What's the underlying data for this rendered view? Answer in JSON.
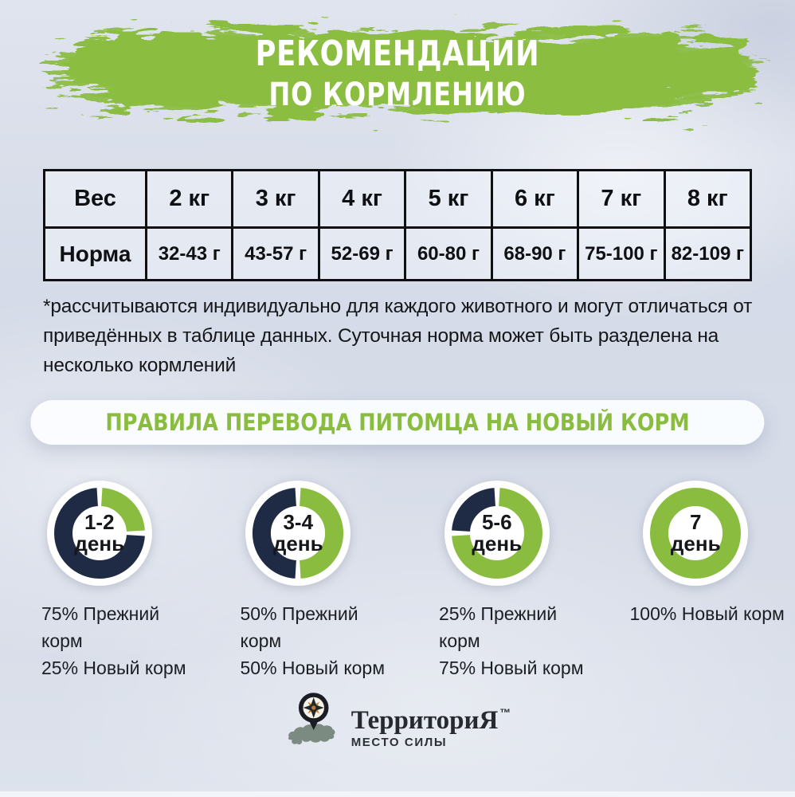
{
  "colors": {
    "accent_green": "#8abd3f",
    "navy": "#1f2a44",
    "page_background": "#d7dce8",
    "banner_text": "#ffffff",
    "pill_background": "#fbfdff",
    "text_dark": "#15181c",
    "map_silhouette": "#7c8b81",
    "compass_orange": "#c07a2b",
    "compass_dark": "#1a1e24"
  },
  "banner": {
    "line1": "РЕКОМЕНДАЦИИ",
    "line2": "ПО КОРМЛЕНИЮ"
  },
  "footnote": "*рассчитываются индивидуально для каждого животного и могут отличаться от приведённых в таблице данных. Суточная норма может быть разделена на несколько кормлений",
  "transition_heading": "ПРАВИЛА ПЕРЕВОДА ПИТОМЦА НА НОВЫЙ КОРМ",
  "chart_data": [
    {
      "type": "table",
      "columns": [
        "Вес",
        "2 кг",
        "3 кг",
        "4 кг",
        "5 кг",
        "6 кг",
        "7 кг",
        "8 кг"
      ],
      "rows": [
        [
          "Норма",
          "32-43 г",
          "43-57 г",
          "52-69 г",
          "60-80 г",
          "68-90 г",
          "75-100 г",
          "82-109 г"
        ]
      ]
    },
    {
      "type": "pie",
      "subtype": "donut-row",
      "title": "ПРАВИЛА ПЕРЕВОДА ПИТОМЦА НА НОВЫЙ КОРМ",
      "colors": {
        "new_food": "#8abd3f",
        "old_food": "#1f2a44"
      },
      "legend": "зелёный = Новый корм, тёмно-синий = Прежний корм",
      "days": [
        {
          "label": "1-2 день",
          "label_top": "1-2",
          "label_bottom": "день",
          "old_food_pct": 75,
          "new_food_pct": 25,
          "caption_lines": [
            "75% Прежний корм",
            "25% Новый корм"
          ]
        },
        {
          "label": "3-4 день",
          "label_top": "3-4",
          "label_bottom": "день",
          "old_food_pct": 50,
          "new_food_pct": 50,
          "caption_lines": [
            "50% Прежний корм",
            "50% Новый корм"
          ]
        },
        {
          "label": "5-6 день",
          "label_top": "5-6",
          "label_bottom": "день",
          "old_food_pct": 25,
          "new_food_pct": 75,
          "caption_lines": [
            "25% Прежний корм",
            "75% Новый корм"
          ]
        },
        {
          "label": "7 день",
          "label_top": "7",
          "label_bottom": "день",
          "old_food_pct": 0,
          "new_food_pct": 100,
          "caption_lines": [
            "100% Новый корм"
          ]
        }
      ]
    }
  ],
  "logo": {
    "brand": "ТерриториЯ",
    "tm": "™",
    "tagline": "МЕСТО СИЛЫ",
    "icons": [
      "compass-icon",
      "russia-map-silhouette"
    ]
  }
}
